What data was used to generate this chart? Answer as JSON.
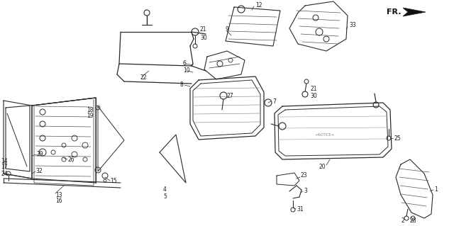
{
  "bg_color": "#ffffff",
  "line_color": "#2a2a2a",
  "label_color": "#1a1a1a",
  "fig_width": 6.4,
  "fig_height": 3.19,
  "dpi": 100,
  "fr_label": "FR."
}
